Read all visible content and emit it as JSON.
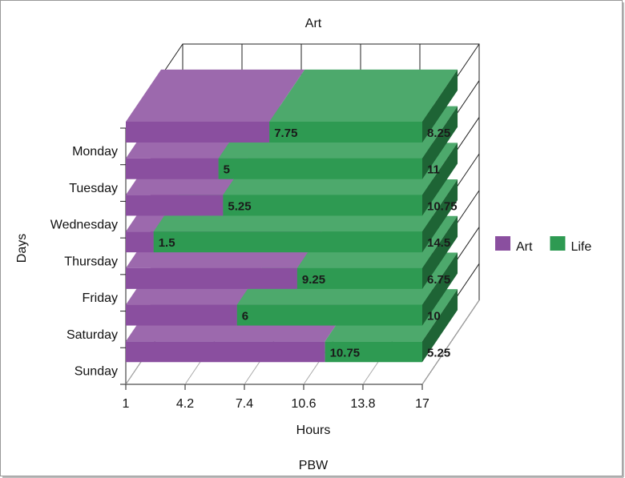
{
  "chart_data": {
    "type": "bar3d",
    "title": "Art",
    "caption": "PBW",
    "x_label": "Hours",
    "y_label": "Days",
    "categories": [
      "Monday",
      "Tuesday",
      "Wednesday",
      "Thursday",
      "Friday",
      "Saturday",
      "Sunday"
    ],
    "series": [
      {
        "name": "Art",
        "color": "#8a4f9f",
        "values": [
          7.75,
          5,
          5.25,
          1.5,
          9.25,
          6,
          10.75
        ]
      },
      {
        "name": "Life",
        "color": "#2e9a52",
        "values": [
          8.25,
          11,
          10.75,
          14.5,
          6.75,
          10,
          5.25
        ]
      }
    ],
    "xlim": [
      1,
      17
    ],
    "xticks": [
      1,
      4.2,
      7.4,
      10.6,
      13.8,
      17
    ],
    "grid": true,
    "legend": "right"
  }
}
